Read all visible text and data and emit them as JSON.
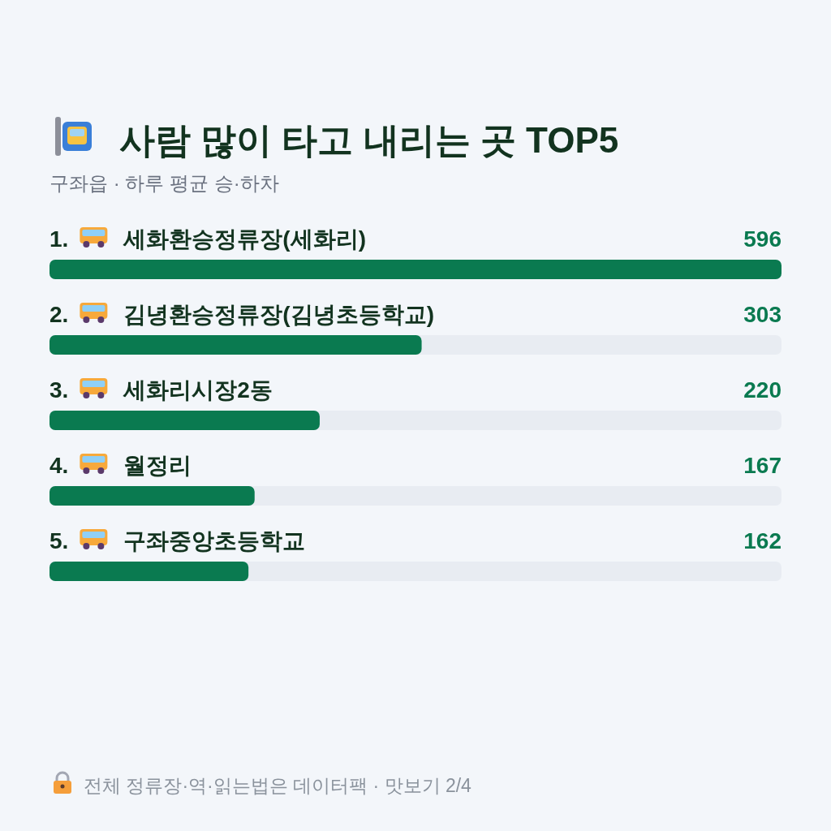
{
  "chart_data": {
    "type": "bar",
    "orientation": "horizontal",
    "title": "사람 많이 타고 내리는 곳 TOP5",
    "subtitle": "구좌읍 · 하루 평균 승·하차",
    "categories": [
      "1. 세화환승정류장(세화리)",
      "2. 김녕환승정류장(김녕초등학교)",
      "3. 세화리시장2동",
      "4. 월정리",
      "5. 구좌중앙초등학교"
    ],
    "values": [
      596,
      303,
      220,
      167,
      162
    ],
    "color": "#0a7a50",
    "xlim": [
      0,
      596
    ],
    "data_labels": true,
    "annotations": [
      "전체 정류장·역·읽는법은 데이터팩 · 맛보기 2/4"
    ]
  }
}
